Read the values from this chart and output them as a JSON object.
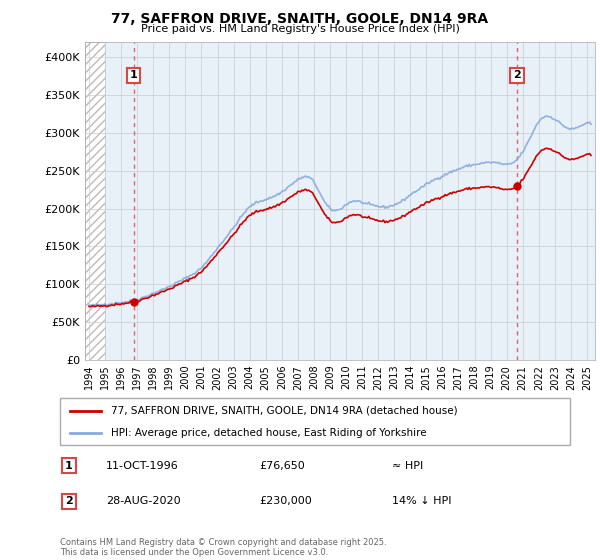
{
  "title": "77, SAFFRON DRIVE, SNAITH, GOOLE, DN14 9RA",
  "subtitle": "Price paid vs. HM Land Registry's House Price Index (HPI)",
  "legend_line1": "77, SAFFRON DRIVE, SNAITH, GOOLE, DN14 9RA (detached house)",
  "legend_line2": "HPI: Average price, detached house, East Riding of Yorkshire",
  "annotation1_label": "1",
  "annotation1_date": "11-OCT-1996",
  "annotation1_price": "£76,650",
  "annotation1_hpi": "≈ HPI",
  "annotation2_label": "2",
  "annotation2_date": "28-AUG-2020",
  "annotation2_price": "£230,000",
  "annotation2_hpi": "14% ↓ HPI",
  "copyright": "Contains HM Land Registry data © Crown copyright and database right 2025.\nThis data is licensed under the Open Government Licence v3.0.",
  "price_color": "#cc0000",
  "hpi_color": "#88aadd",
  "annotation_color": "#dd4444",
  "ylim": [
    0,
    420000
  ],
  "xlim_start": 1993.75,
  "xlim_end": 2025.5,
  "yticks": [
    0,
    50000,
    100000,
    150000,
    200000,
    250000,
    300000,
    350000,
    400000
  ],
  "ytick_labels": [
    "£0",
    "£50K",
    "£100K",
    "£150K",
    "£200K",
    "£250K",
    "£300K",
    "£350K",
    "£400K"
  ],
  "xticks": [
    1994,
    1995,
    1996,
    1997,
    1998,
    1999,
    2000,
    2001,
    2002,
    2003,
    2004,
    2005,
    2006,
    2007,
    2008,
    2009,
    2010,
    2011,
    2012,
    2013,
    2014,
    2015,
    2016,
    2017,
    2018,
    2019,
    2020,
    2021,
    2022,
    2023,
    2024,
    2025
  ],
  "sale1_x": 1996.78,
  "sale1_y": 76650,
  "sale2_x": 2020.65,
  "sale2_y": 230000,
  "hatch_end": 1995.0,
  "chart_background": "#e8f0f8"
}
